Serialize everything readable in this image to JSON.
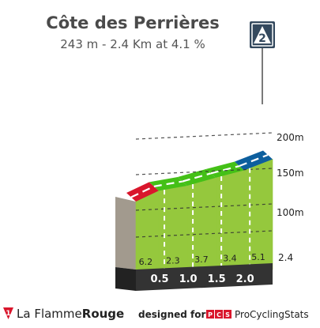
{
  "header": {
    "title": "Côte des Perrières",
    "subtitle": "243 m - 2.4 Km at 4.1 %"
  },
  "category_badge": {
    "value": "2",
    "color": "#34495e"
  },
  "chart_data": {
    "type": "area",
    "title": "Côte des Perrières",
    "subtitle": "243 m - 2.4 Km at 4.1 %",
    "x_unit": "km",
    "y_unit": "m",
    "distance_km": 2.4,
    "elevation_gain_m": 243,
    "average_gradient_pct": 4.1,
    "km_marks": [
      0.5,
      1.0,
      1.5,
      2.0
    ],
    "km_mark_labels": [
      "0.5",
      "1.0",
      "1.5",
      "2.0"
    ],
    "end_label": "2.4",
    "segments": [
      {
        "from_km": 0.0,
        "to_km": 0.4,
        "gradient": 6.2,
        "label": "6.2",
        "color": "#d9162c"
      },
      {
        "from_km": 0.4,
        "to_km": 0.9,
        "gradient": 2.3,
        "label": "2.3",
        "color": "#44c017"
      },
      {
        "from_km": 0.9,
        "to_km": 1.4,
        "gradient": 3.7,
        "label": "3.7",
        "color": "#44c017"
      },
      {
        "from_km": 1.4,
        "to_km": 1.9,
        "gradient": 3.4,
        "label": "3.4",
        "color": "#44c017"
      },
      {
        "from_km": 1.9,
        "to_km": 2.4,
        "gradient": 5.1,
        "label": "5.1",
        "color": "#0d5f9e"
      }
    ],
    "altitude_ticks": [
      100,
      150,
      200
    ],
    "altitude_tick_labels": [
      "100m",
      "150m",
      "200m"
    ],
    "grid": true,
    "colors": {
      "slope_fill": "#95c83d",
      "base_bar": "#333333",
      "side_wall": "#a29a8e"
    }
  },
  "footer": {
    "brand_prefix": "La Flamme",
    "brand_suffix": "Rouge",
    "brand_badge": "1",
    "designed_for": "designed for",
    "pcs_logo_letters": [
      "P",
      "C",
      "S"
    ],
    "pcs_name": "ProCyclingStats"
  }
}
